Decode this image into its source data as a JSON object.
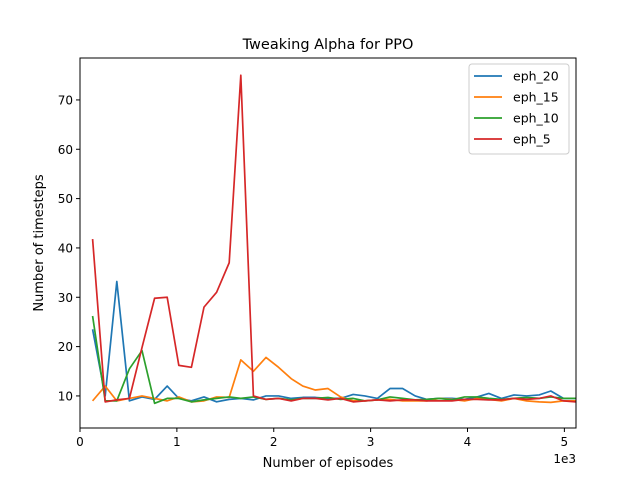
{
  "chart_data": {
    "type": "line",
    "title": "Tweaking Alpha for PPO",
    "xlabel": "Number of episodes",
    "ylabel": "Number of timesteps",
    "x_offset_label": "1e3",
    "x_scale_factor": 1000,
    "xlim": [
      0,
      5120
    ],
    "ylim": [
      3.5,
      78.5
    ],
    "xticks": [
      0,
      1000,
      2000,
      3000,
      4000,
      5000
    ],
    "xtick_labels": [
      "0",
      "1",
      "2",
      "3",
      "4",
      "5"
    ],
    "yticks": [
      10,
      20,
      30,
      40,
      50,
      60,
      70
    ],
    "ytick_labels": [
      "10",
      "20",
      "30",
      "40",
      "50",
      "60",
      "70"
    ],
    "grid": false,
    "legend": "top-right",
    "series": [
      {
        "name": "eph_20",
        "color": "#1f77b4",
        "x": [
          130,
          260,
          380,
          510,
          640,
          770,
          900,
          1020,
          1150,
          1280,
          1410,
          1540,
          1660,
          1790,
          1920,
          2050,
          2180,
          2300,
          2430,
          2560,
          2690,
          2820,
          2940,
          3070,
          3200,
          3330,
          3460,
          3580,
          3710,
          3840,
          3970,
          4100,
          4220,
          4350,
          4480,
          4610,
          4740,
          4860,
          4990,
          5120
        ],
        "y": [
          23.5,
          10.0,
          33.2,
          9.0,
          9.8,
          9.3,
          12.0,
          9.5,
          9.0,
          9.8,
          8.8,
          9.3,
          9.5,
          9.2,
          10.0,
          10.0,
          9.5,
          9.7,
          9.7,
          9.5,
          9.5,
          10.3,
          10.0,
          9.5,
          11.5,
          11.5,
          10.0,
          9.3,
          9.5,
          9.5,
          9.3,
          9.8,
          10.5,
          9.5,
          10.2,
          10.0,
          10.2,
          11.0,
          9.5,
          9.5
        ]
      },
      {
        "name": "eph_15",
        "color": "#ff7f0e",
        "x": [
          130,
          260,
          380,
          510,
          640,
          770,
          900,
          1020,
          1150,
          1280,
          1410,
          1540,
          1660,
          1790,
          1920,
          2050,
          2180,
          2300,
          2430,
          2560,
          2690,
          2820,
          2940,
          3070,
          3200,
          3330,
          3460,
          3580,
          3710,
          3840,
          3970,
          4100,
          4220,
          4350,
          4480,
          4610,
          4740,
          4860,
          4990,
          5120
        ],
        "y": [
          9.0,
          12.0,
          9.0,
          9.5,
          10.0,
          9.5,
          9.0,
          9.8,
          8.8,
          9.0,
          9.8,
          9.7,
          17.3,
          15.0,
          17.8,
          15.8,
          13.5,
          12.0,
          11.2,
          11.5,
          9.8,
          9.0,
          9.0,
          9.2,
          9.3,
          9.0,
          9.0,
          9.0,
          9.5,
          9.3,
          9.0,
          9.5,
          9.3,
          9.0,
          9.5,
          9.0,
          8.8,
          8.7,
          9.0,
          9.0
        ]
      },
      {
        "name": "eph_10",
        "color": "#2ca02c",
        "x": [
          130,
          260,
          380,
          510,
          640,
          770,
          900,
          1020,
          1150,
          1280,
          1410,
          1540,
          1660,
          1790,
          1920,
          2050,
          2180,
          2300,
          2430,
          2560,
          2690,
          2820,
          2940,
          3070,
          3200,
          3330,
          3460,
          3580,
          3710,
          3840,
          3970,
          4100,
          4220,
          4350,
          4480,
          4610,
          4740,
          4860,
          4990,
          5120
        ],
        "y": [
          26.2,
          9.0,
          9.0,
          15.5,
          19.2,
          8.5,
          9.5,
          9.5,
          8.8,
          9.2,
          9.5,
          9.8,
          9.5,
          9.8,
          9.3,
          9.5,
          9.2,
          9.5,
          9.5,
          9.7,
          9.3,
          9.5,
          9.0,
          9.2,
          9.8,
          9.5,
          9.2,
          9.3,
          9.5,
          9.2,
          9.8,
          9.8,
          9.5,
          9.3,
          9.5,
          9.7,
          9.5,
          9.8,
          9.5,
          9.5
        ]
      },
      {
        "name": "eph_5",
        "color": "#d62728",
        "x": [
          130,
          260,
          380,
          510,
          640,
          770,
          900,
          1020,
          1150,
          1280,
          1410,
          1540,
          1660,
          1790,
          1920,
          2050,
          2180,
          2300,
          2430,
          2560,
          2690,
          2820,
          2940,
          3070,
          3200,
          3330,
          3460,
          3580,
          3710,
          3840,
          3970,
          4100,
          4220,
          4350,
          4480,
          4610,
          4740,
          4860,
          4990,
          5120
        ],
        "y": [
          41.8,
          8.8,
          9.2,
          9.5,
          19.8,
          29.8,
          30.0,
          16.2,
          15.8,
          28.0,
          31.0,
          37.0,
          75.0,
          10.0,
          9.3,
          9.5,
          9.0,
          9.5,
          9.5,
          9.2,
          9.5,
          8.8,
          9.0,
          9.2,
          9.0,
          9.2,
          9.2,
          9.0,
          9.0,
          9.0,
          9.3,
          9.3,
          9.2,
          9.2,
          9.5,
          9.3,
          9.5,
          10.0,
          9.0,
          8.8
        ]
      }
    ]
  }
}
